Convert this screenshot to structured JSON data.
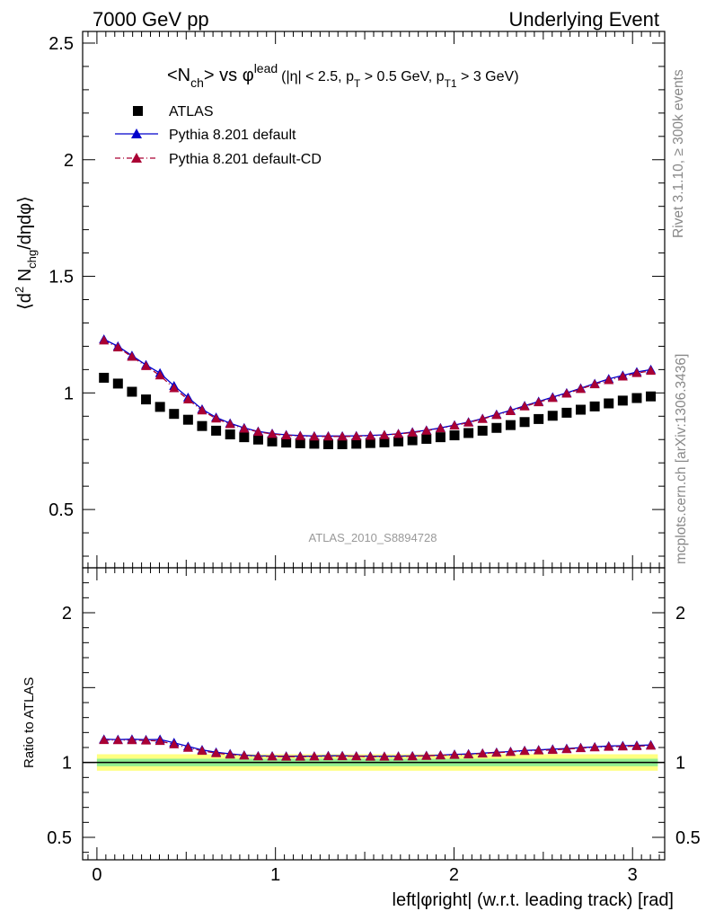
{
  "header": {
    "energy_label": "7000 GeV pp",
    "process_label": "Underlying Event"
  },
  "side_labels": {
    "rivet": "Rivet 3.1.10, ≥ 300k events",
    "mcplots": "mcplots.cern.ch [arXiv:1306.3436]"
  },
  "analysis_id": "ATLAS_2010_S8894728",
  "colors": {
    "atlas": "#000000",
    "pythia_default": "#0000cc",
    "pythia_cd": "#aa0033",
    "band_inner": "#90ee90",
    "band_outer": "#ffff80"
  },
  "chart_data": [
    {
      "type": "scatter",
      "panel": "main",
      "title": "<N_ch> vs φ^lead (|η| < 2.5, p_T > 0.5 GeV, p_T1 > 3 GeV)",
      "ylabel": "⟨d² N_chg/dηdφ⟩",
      "xlim": [
        -0.08,
        3.18
      ],
      "ylim": [
        0.25,
        2.55
      ],
      "y_ticks": [
        0.5,
        1,
        1.5,
        2,
        2.5
      ],
      "x_ticks": [
        0,
        1,
        2,
        3
      ],
      "legend_position": "top-left",
      "x": [
        0.0393,
        0.1178,
        0.1963,
        0.2749,
        0.3534,
        0.432,
        0.5105,
        0.589,
        0.6676,
        0.7461,
        0.8247,
        0.9032,
        0.9817,
        1.0603,
        1.1388,
        1.2174,
        1.2959,
        1.3744,
        1.453,
        1.5315,
        1.6101,
        1.6886,
        1.7671,
        1.8457,
        1.9242,
        2.0028,
        2.0813,
        2.1598,
        2.2384,
        2.3169,
        2.3955,
        2.474,
        2.5525,
        2.6311,
        2.7096,
        2.7882,
        2.8667,
        2.9452,
        3.0238,
        3.1023
      ],
      "series": [
        {
          "name": "ATLAS",
          "marker": "square",
          "values": [
            1.065,
            1.04,
            1.005,
            0.972,
            0.94,
            0.91,
            0.885,
            0.858,
            0.838,
            0.822,
            0.81,
            0.8,
            0.792,
            0.787,
            0.784,
            0.782,
            0.78,
            0.78,
            0.782,
            0.785,
            0.788,
            0.792,
            0.797,
            0.803,
            0.81,
            0.818,
            0.828,
            0.838,
            0.85,
            0.862,
            0.875,
            0.888,
            0.902,
            0.915,
            0.928,
            0.942,
            0.955,
            0.967,
            0.978,
            0.985
          ]
        },
        {
          "name": "Pythia 8.201 default",
          "marker": "triangle",
          "line": "solid",
          "values": [
            1.23,
            1.2,
            1.16,
            1.12,
            1.085,
            1.03,
            0.98,
            0.93,
            0.895,
            0.87,
            0.85,
            0.835,
            0.826,
            0.82,
            0.817,
            0.815,
            0.815,
            0.815,
            0.816,
            0.818,
            0.82,
            0.825,
            0.832,
            0.84,
            0.85,
            0.862,
            0.875,
            0.89,
            0.908,
            0.925,
            0.945,
            0.963,
            0.982,
            1.0,
            1.02,
            1.04,
            1.06,
            1.075,
            1.09,
            1.1
          ]
        },
        {
          "name": "Pythia 8.201 default-CD",
          "marker": "triangle",
          "line": "dash-dot",
          "values": [
            1.225,
            1.195,
            1.155,
            1.115,
            1.075,
            1.02,
            0.972,
            0.925,
            0.89,
            0.866,
            0.847,
            0.833,
            0.824,
            0.818,
            0.815,
            0.813,
            0.813,
            0.813,
            0.814,
            0.816,
            0.819,
            0.824,
            0.83,
            0.838,
            0.848,
            0.86,
            0.873,
            0.888,
            0.905,
            0.922,
            0.942,
            0.96,
            0.978,
            0.997,
            1.017,
            1.037,
            1.055,
            1.07,
            1.085,
            1.095
          ]
        }
      ]
    },
    {
      "type": "scatter",
      "panel": "ratio",
      "ylabel": "Ratio to ATLAS",
      "xlabel": "left|φright| (w.r.t. leading track) [rad]",
      "xlim": [
        -0.08,
        3.18
      ],
      "ylim": [
        0.35,
        2.3
      ],
      "y_ticks": [
        0.5,
        1,
        2
      ],
      "x_ticks": [
        0,
        1,
        2,
        3
      ],
      "reference_line": 1,
      "band_inner": [
        0.975,
        1.025
      ],
      "band_outer": [
        0.945,
        1.055
      ],
      "series": [
        {
          "name": "Pythia 8.201 default",
          "values": [
            1.155,
            1.153,
            1.155,
            1.152,
            1.154,
            1.132,
            1.107,
            1.084,
            1.068,
            1.058,
            1.049,
            1.044,
            1.043,
            1.042,
            1.042,
            1.042,
            1.045,
            1.045,
            1.043,
            1.042,
            1.041,
            1.042,
            1.044,
            1.046,
            1.049,
            1.054,
            1.057,
            1.062,
            1.068,
            1.073,
            1.08,
            1.084,
            1.089,
            1.093,
            1.099,
            1.104,
            1.11,
            1.112,
            1.114,
            1.117
          ]
        },
        {
          "name": "Pythia 8.201 default-CD",
          "values": [
            1.15,
            1.149,
            1.149,
            1.147,
            1.144,
            1.121,
            1.098,
            1.078,
            1.062,
            1.053,
            1.046,
            1.041,
            1.04,
            1.039,
            1.039,
            1.04,
            1.042,
            1.042,
            1.041,
            1.039,
            1.039,
            1.04,
            1.041,
            1.044,
            1.047,
            1.051,
            1.054,
            1.06,
            1.065,
            1.07,
            1.077,
            1.081,
            1.084,
            1.089,
            1.096,
            1.101,
            1.105,
            1.107,
            1.109,
            1.112
          ]
        }
      ]
    }
  ]
}
